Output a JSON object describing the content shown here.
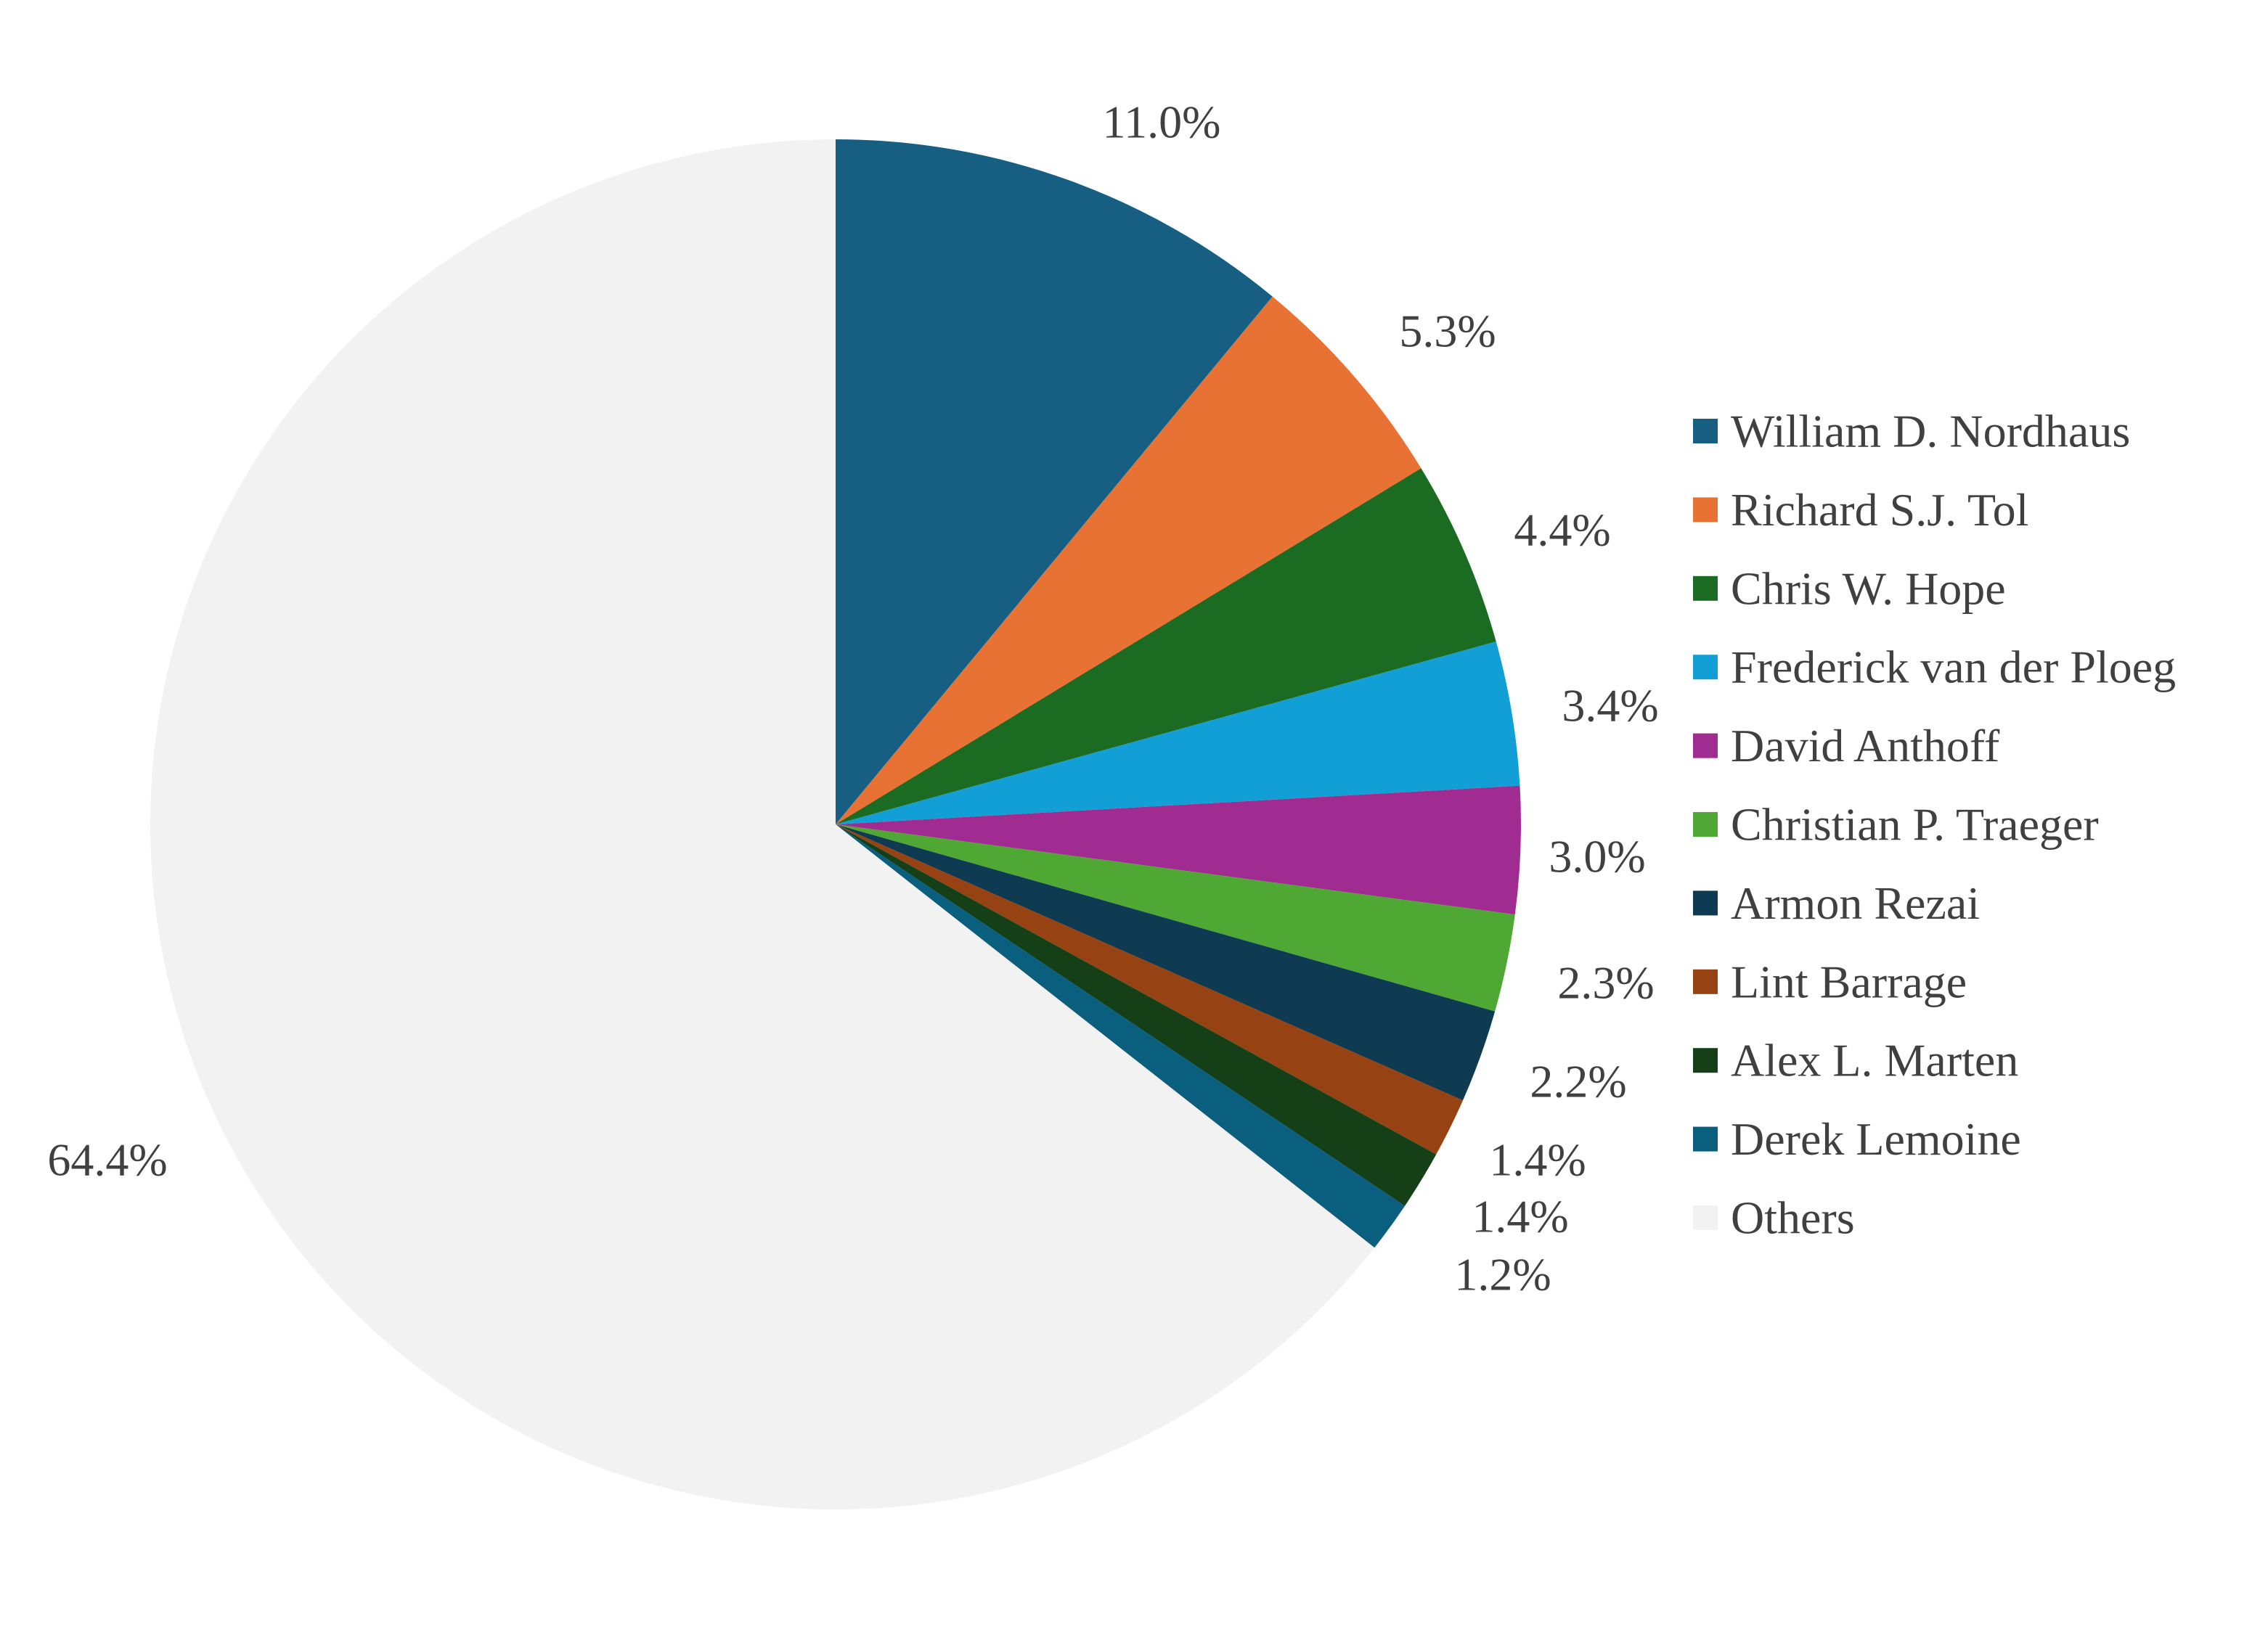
{
  "chart_data": {
    "type": "pie",
    "title": "",
    "categories": [
      "William D. Nordhaus",
      "Richard S.J. Tol",
      "Chris W. Hope",
      "Frederick van der Ploeg",
      "David Anthoff",
      "Christian P. Traeger",
      "Armon Rezai",
      "Lint Barrage",
      "Alex L. Marten",
      "Derek Lemoine",
      "Others"
    ],
    "values": [
      11.0,
      5.3,
      4.4,
      3.4,
      3.0,
      2.3,
      2.2,
      1.4,
      1.4,
      1.2,
      64.4
    ],
    "labels": [
      "11.0%",
      "5.3%",
      "4.4%",
      "3.4%",
      "3.0%",
      "2.3%",
      "2.2%",
      "1.4%",
      "1.4%",
      "1.2%",
      "64.4%"
    ],
    "colors": [
      "#175f82",
      "#e87233",
      "#1c6b23",
      "#129fd6",
      "#a02c92",
      "#4ea833",
      "#0e3a52",
      "#974212",
      "#143f17",
      "#0a5e7e",
      "#f2f2f2"
    ],
    "start_angle": "12 o'clock",
    "direction": "clockwise",
    "legend_position": "right"
  }
}
